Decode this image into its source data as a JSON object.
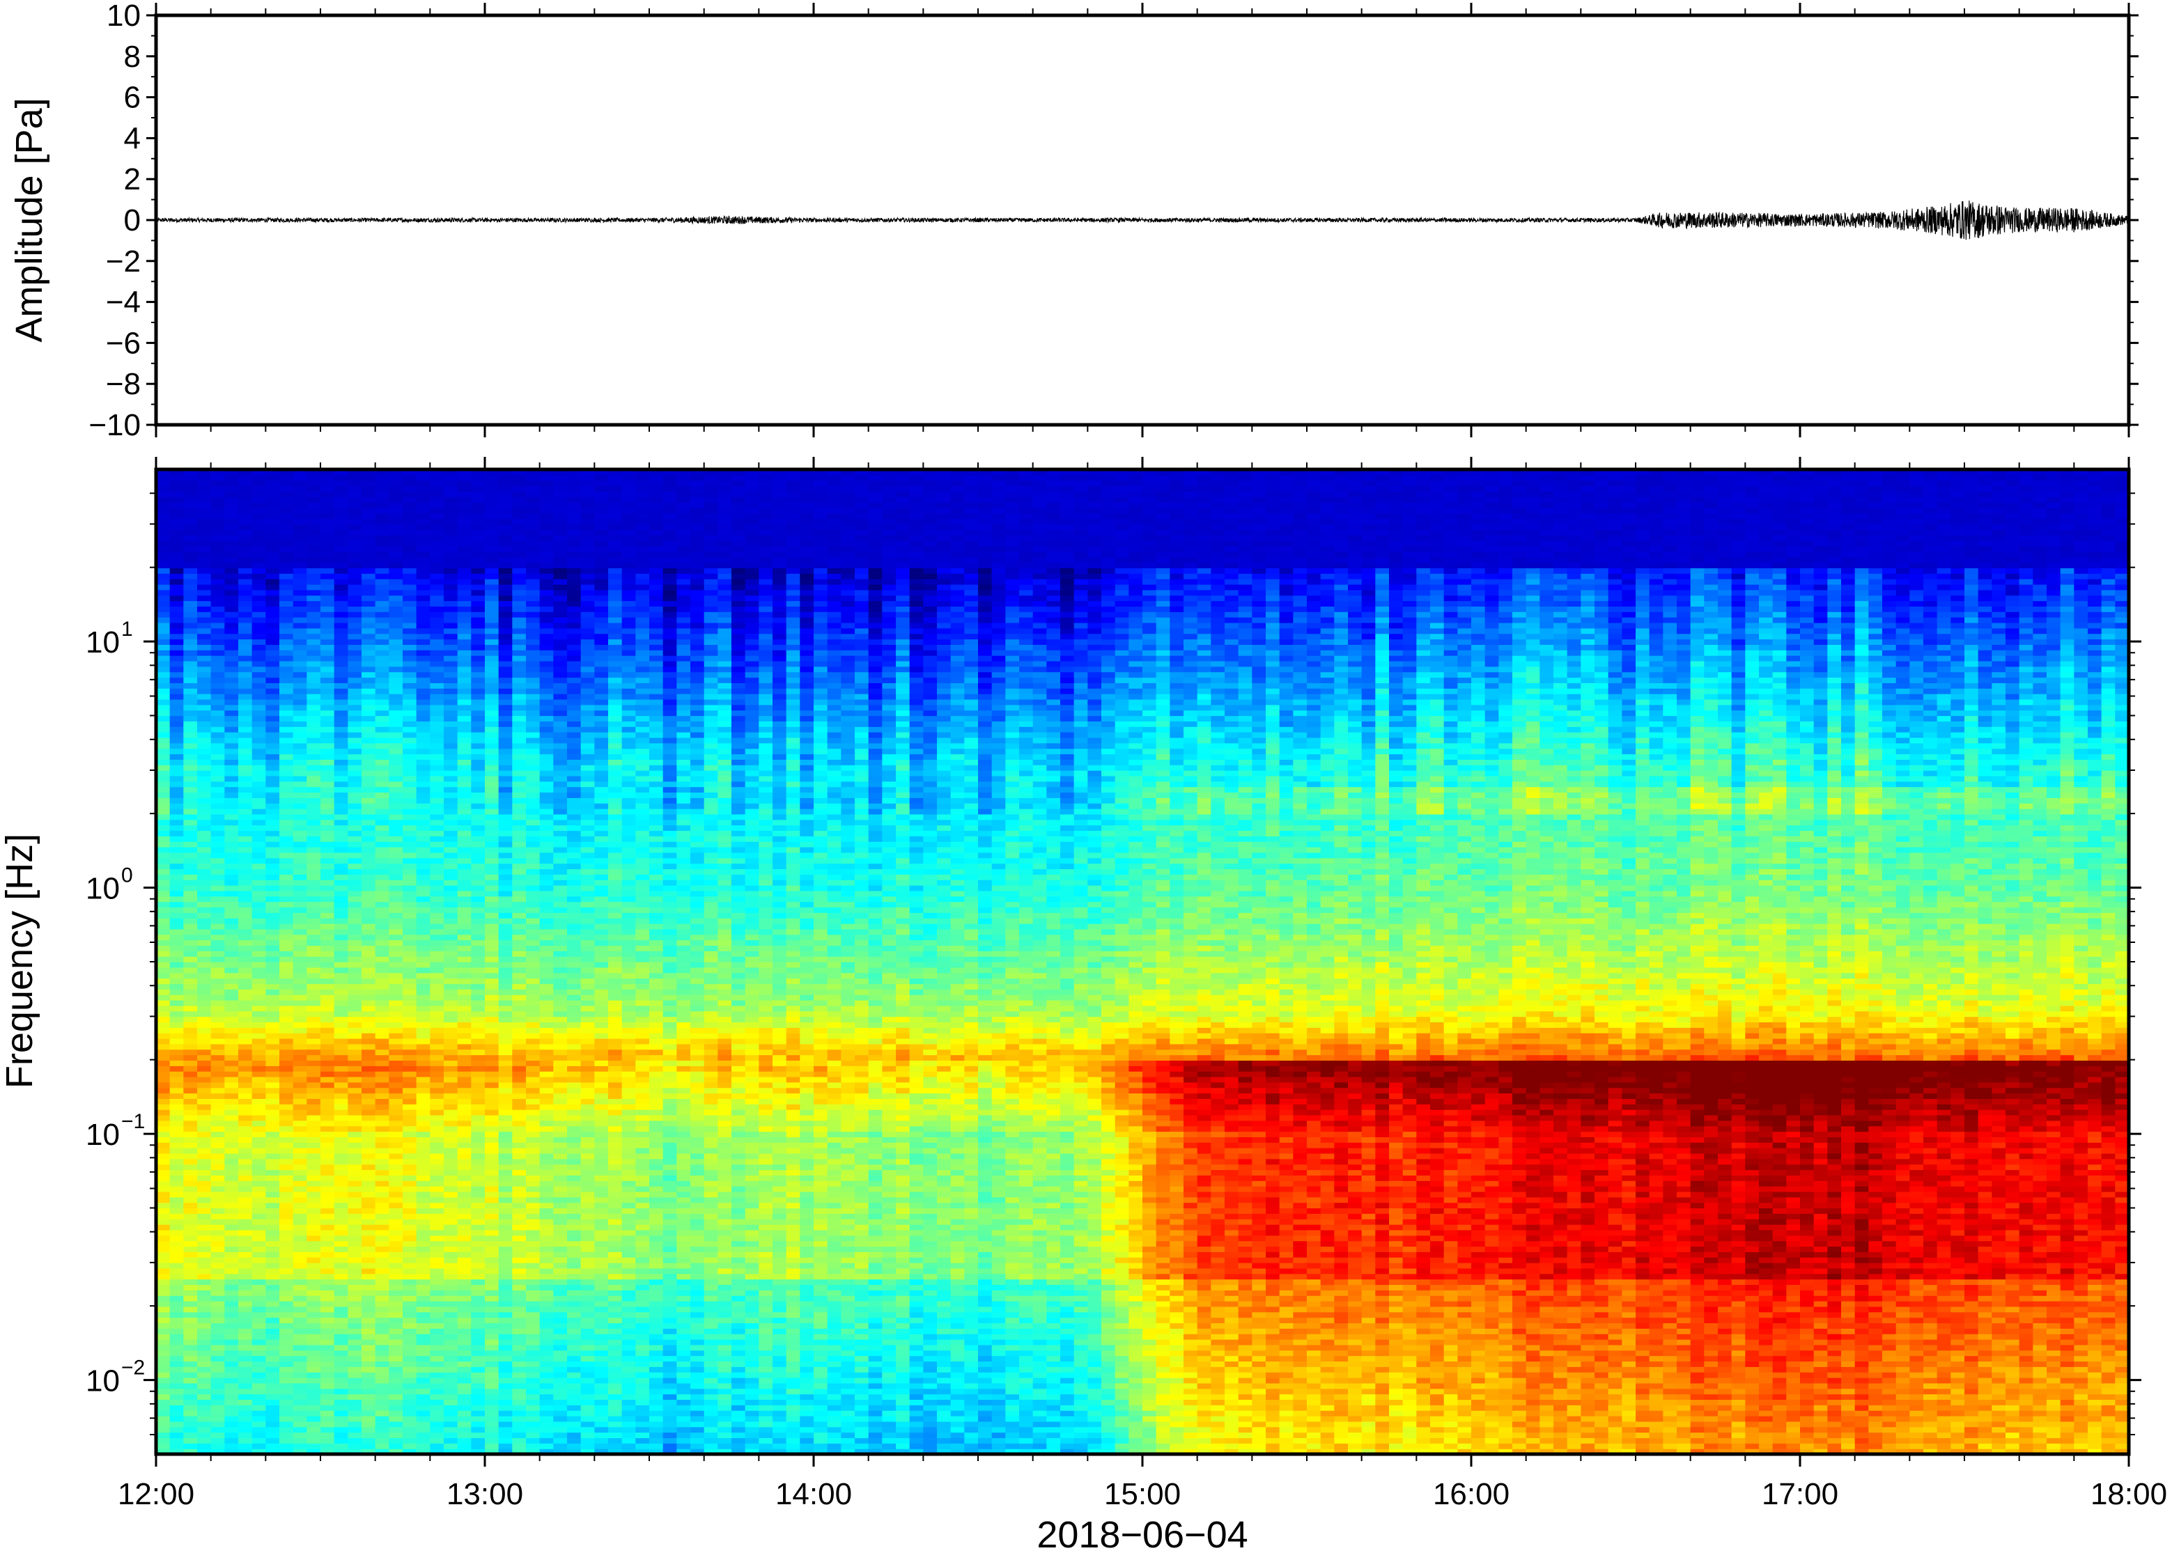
{
  "chart_data": [
    {
      "type": "line",
      "ylabel": "Amplitude [Pa]",
      "ylim": [
        -10,
        10
      ],
      "yticks": [
        10,
        8,
        6,
        4,
        2,
        0,
        -2,
        -4,
        -6,
        -8,
        -10
      ],
      "ytick_labels": [
        "10",
        "8",
        "6",
        "4",
        "2",
        "0",
        "−2",
        "−4",
        "−6",
        "−8",
        "−10"
      ],
      "x": [
        "12:00",
        "12:30",
        "13:00",
        "13:30",
        "13:45",
        "14:00",
        "14:30",
        "15:00",
        "15:30",
        "16:00",
        "16:30",
        "16:35",
        "16:45",
        "17:00",
        "17:15",
        "17:25",
        "17:30",
        "17:35",
        "17:40",
        "17:50",
        "18:00"
      ],
      "series": [
        {
          "values": [
            0.1,
            0.1,
            0.1,
            0.1,
            0.2,
            0.1,
            0.1,
            0.1,
            0.1,
            0.1,
            0.1,
            0.4,
            0.4,
            0.3,
            0.4,
            0.7,
            1.0,
            0.8,
            0.6,
            0.6,
            0.2
          ]
        }
      ]
    },
    {
      "type": "heatmap",
      "xlabel": "2018−06−04",
      "ylabel": "Frequency [Hz]",
      "ylim": [
        0.005,
        50
      ],
      "y_scale": "log",
      "yticks": [
        0.01,
        0.1,
        1,
        10
      ],
      "ytick_labels": [
        {
          "base": "10",
          "exp": "−2"
        },
        {
          "base": "10",
          "exp": "−1"
        },
        {
          "base": "10",
          "exp": "0"
        },
        {
          "base": "10",
          "exp": "1"
        }
      ],
      "xticks": [
        "12:00",
        "13:00",
        "14:00",
        "15:00",
        "16:00",
        "17:00",
        "18:00"
      ],
      "xlim": [
        "12:00",
        "18:00"
      ],
      "colormap": "jet",
      "power_level_by_time": [
        0.3,
        0.25,
        0.3,
        0.25,
        0.2,
        0.1,
        0.2,
        0.15,
        0.1,
        0.2,
        0.7,
        0.8,
        0.75,
        0.8,
        0.85,
        0.9,
        0.95,
        0.9,
        0.85,
        0.8
      ]
    }
  ]
}
